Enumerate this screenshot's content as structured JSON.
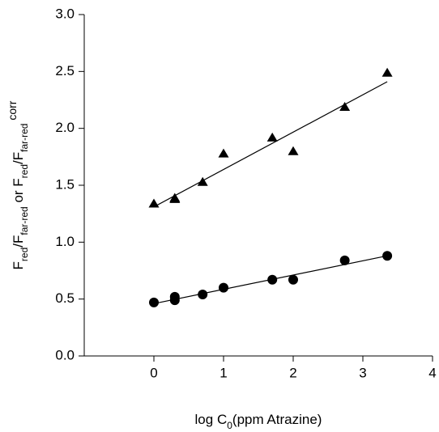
{
  "chart_data": {
    "type": "scatter",
    "xlabel": [
      {
        "text": "log C"
      },
      {
        "text": "0",
        "sub": true
      },
      {
        "text": "(ppm Atrazine)"
      }
    ],
    "ylabel": [
      {
        "text": "F"
      },
      {
        "text": "red",
        "sub": true
      },
      {
        "text": "/F"
      },
      {
        "text": "far-red",
        "sub": true
      },
      {
        "text": " or F"
      },
      {
        "text": "red",
        "sub": true
      },
      {
        "text": "/F"
      },
      {
        "text": "far-red",
        "sub": true
      },
      {
        "text": " corr",
        "sup": true
      }
    ],
    "xlim": [
      -1,
      4
    ],
    "xticks": [
      0,
      1,
      2,
      3,
      4
    ],
    "ylim": [
      0,
      3
    ],
    "yticks": [
      {
        "value": 0,
        "label": "0.0"
      },
      {
        "value": 0.5,
        "label": "0.5"
      },
      {
        "value": 1,
        "label": "1.0"
      },
      {
        "value": 1.5,
        "label": "1.5"
      },
      {
        "value": 2,
        "label": "2.0"
      },
      {
        "value": 2.5,
        "label": "2.5"
      },
      {
        "value": 3,
        "label": "3.0"
      }
    ],
    "series": [
      {
        "marker": "triangle",
        "color": "#000000",
        "x": [
          0,
          0.3,
          0.3,
          0.7,
          1,
          1.7,
          2,
          2.74,
          3.35
        ],
        "values": [
          1.34,
          1.39,
          1.38,
          1.53,
          1.78,
          1.92,
          1.8,
          2.19,
          2.49
        ]
      },
      {
        "marker": "circle",
        "color": "#000000",
        "x": [
          0,
          0.3,
          0.3,
          0.7,
          1,
          1.7,
          2,
          2.74,
          3.35
        ],
        "values": [
          0.47,
          0.52,
          0.49,
          0.54,
          0.6,
          0.67,
          0.67,
          0.84,
          0.88
        ]
      }
    ],
    "fits": [
      {
        "color": "#000000",
        "x": [
          0,
          3.35
        ],
        "values": [
          1.31,
          2.41
        ]
      },
      {
        "color": "#000000",
        "x": [
          0,
          3.35
        ],
        "values": [
          0.46,
          0.88
        ]
      }
    ]
  }
}
